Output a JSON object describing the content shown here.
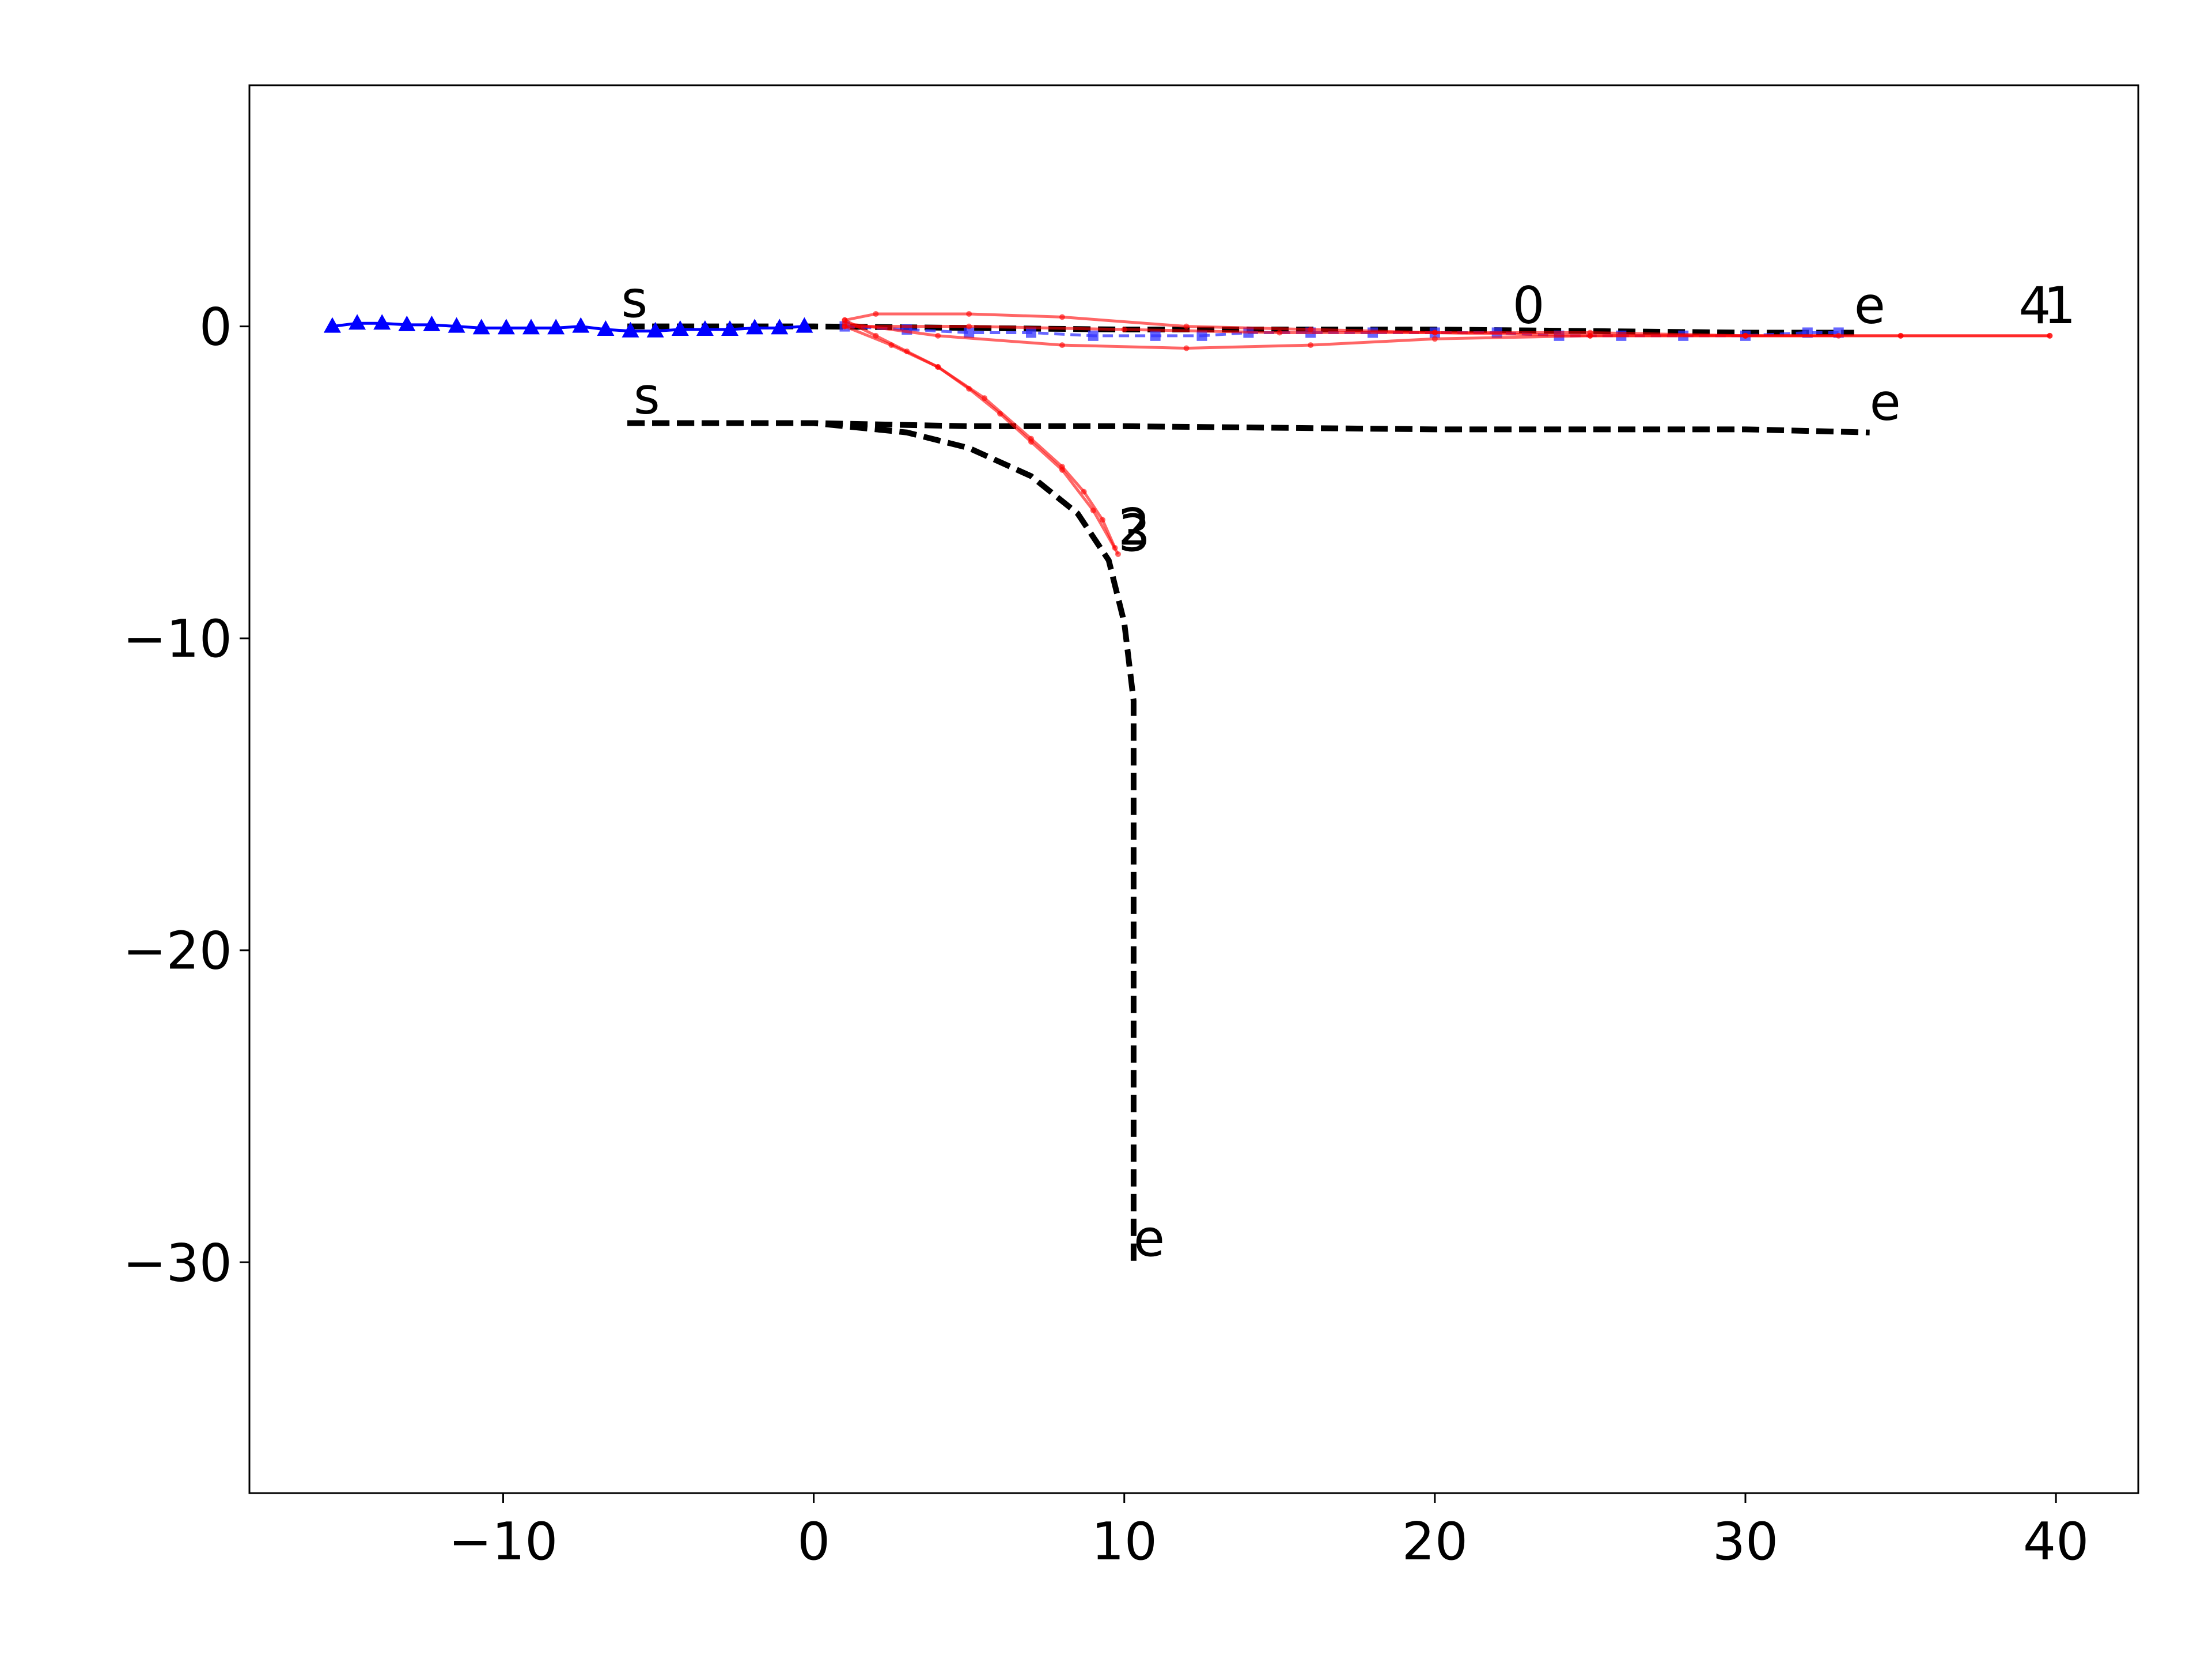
{
  "chart_data": {
    "type": "line",
    "xlim": [
      -18.17,
      42.65
    ],
    "ylim": [
      -37.4,
      7.73
    ],
    "xticks": [
      {
        "value": -10,
        "label": "−10"
      },
      0,
      10,
      20,
      30,
      40
    ],
    "yticks": [
      {
        "value": -30,
        "label": "−30"
      },
      {
        "value": -20,
        "label": "−20"
      },
      {
        "value": -10,
        "label": "−10"
      },
      0
    ],
    "series": [
      {
        "color": "#000000",
        "style": "dashed",
        "x": [
          -6,
          0,
          10,
          20,
          30,
          33.5
        ],
        "values": [
          0,
          0,
          -0.1,
          -0.1,
          -0.2,
          -0.2
        ]
      },
      {
        "color": "#000000",
        "style": "dashed",
        "x": [
          -6,
          0,
          5,
          10,
          20,
          30,
          34
        ],
        "values": [
          -3.1,
          -3.1,
          -3.2,
          -3.2,
          -3.3,
          -3.3,
          -3.4
        ]
      },
      {
        "color": "#000000",
        "style": "dashed",
        "x": [
          -6,
          0,
          3,
          5,
          7,
          8.5,
          9.5,
          10,
          10.3,
          10.3,
          10.3
        ],
        "values": [
          -3.1,
          -3.1,
          -3.4,
          -3.9,
          -4.8,
          -6,
          -7.5,
          -9.5,
          -12,
          -20,
          -30
        ]
      },
      {
        "color": "#0000ff",
        "style": "solid",
        "marker": "triangle",
        "x": [
          -15.5,
          -14.7,
          -13.9,
          -13.1,
          -12.3,
          -11.5,
          -10.7,
          -9.9,
          -9.1,
          -8.3,
          -7.5,
          -6.7,
          -5.9,
          -5.1,
          -4.3,
          -3.5,
          -2.7,
          -1.9,
          -1.1,
          -0.3
        ],
        "values": [
          0,
          0.1,
          0.1,
          0.05,
          0.05,
          0,
          -0.05,
          -0.05,
          -0.05,
          -0.05,
          0,
          -0.1,
          -0.15,
          -0.15,
          -0.1,
          -0.1,
          -0.1,
          -0.05,
          -0.05,
          0
        ]
      },
      {
        "color": "#3333ff",
        "style": "dashed",
        "marker": "square",
        "x": [
          1,
          3,
          5,
          7,
          9,
          11,
          12.5,
          14,
          16,
          18,
          20,
          22,
          24,
          26,
          28,
          30,
          32,
          33
        ],
        "values": [
          0,
          -0.1,
          -0.2,
          -0.2,
          -0.3,
          -0.3,
          -0.3,
          -0.2,
          -0.2,
          -0.2,
          -0.2,
          -0.2,
          -0.3,
          -0.3,
          -0.3,
          -0.3,
          -0.2,
          -0.2
        ]
      },
      {
        "color": "#ff0000",
        "style": "solid",
        "marker": "dot",
        "x": [
          1,
          2,
          5,
          8,
          12,
          16,
          20,
          25,
          30,
          35,
          39.8
        ],
        "values": [
          0.2,
          0.4,
          0.4,
          0.3,
          0,
          -0.1,
          -0.2,
          -0.2,
          -0.3,
          -0.3,
          -0.3
        ]
      },
      {
        "color": "#ff0000",
        "style": "solid",
        "marker": "dot",
        "x": [
          1,
          4,
          8,
          12,
          16,
          20,
          25,
          30,
          35,
          39.8
        ],
        "values": [
          0.1,
          -0.3,
          -0.6,
          -0.7,
          -0.6,
          -0.4,
          -0.3,
          -0.3,
          -0.3,
          -0.3
        ]
      },
      {
        "color": "#ff0000",
        "style": "solid",
        "marker": "dot",
        "x": [
          1,
          5,
          10,
          15,
          20,
          25,
          30,
          33
        ],
        "values": [
          0,
          0,
          -0.1,
          -0.2,
          -0.2,
          -0.3,
          -0.3,
          -0.3
        ]
      },
      {
        "color": "#ff0000",
        "style": "solid",
        "marker": "dot",
        "x": [
          1,
          2,
          3,
          4,
          5,
          6,
          7,
          8,
          9,
          9.8
        ],
        "values": [
          0.2,
          -0.3,
          -0.8,
          -1.3,
          -2,
          -2.8,
          -3.7,
          -4.6,
          -5.9,
          -7.3
        ]
      },
      {
        "color": "#ff0000",
        "style": "solid",
        "marker": "dot",
        "x": [
          1,
          2.5,
          4,
          5.5,
          7,
          8,
          8.7,
          9.3,
          9.7
        ],
        "values": [
          0,
          -0.6,
          -1.3,
          -2.3,
          -3.6,
          -4.5,
          -5.3,
          -6.2,
          -7.1
        ]
      }
    ],
    "annotations": [
      {
        "text": "s",
        "x": -6.2,
        "y": 0.3
      },
      {
        "text": "s",
        "x": -5.8,
        "y": -2.8
      },
      {
        "text": "e",
        "x": 33.5,
        "y": 0.1
      },
      {
        "text": "e",
        "x": 34,
        "y": -3
      },
      {
        "text": "e",
        "x": 10.3,
        "y": -29.8
      },
      {
        "text": "0",
        "x": 22.5,
        "y": 0.1
      },
      {
        "text": "4",
        "x": 38.8,
        "y": 0.1
      },
      {
        "text": "1",
        "x": 39.6,
        "y": 0.1
      },
      {
        "text": "2",
        "x": 9.8,
        "y": -7
      },
      {
        "text": "3",
        "x": 9.8,
        "y": -7.2
      }
    ]
  }
}
